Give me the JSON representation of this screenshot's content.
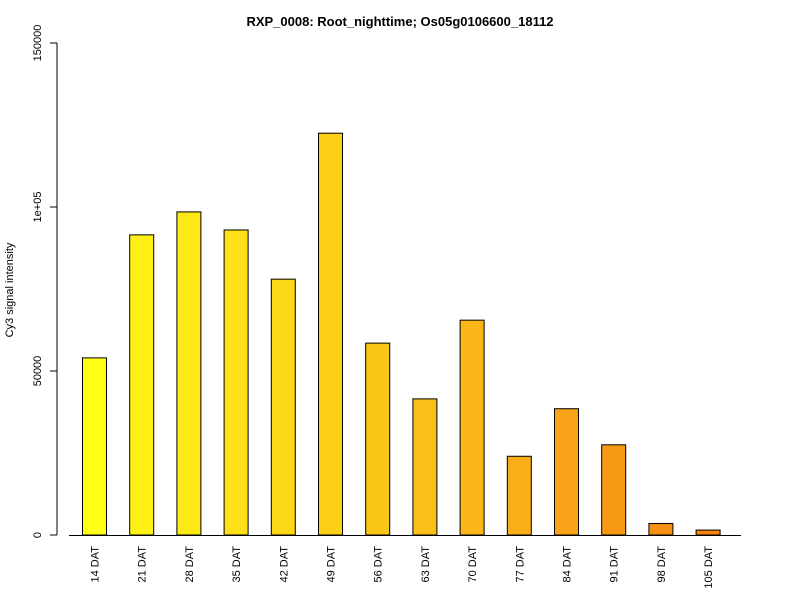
{
  "chart_data": {
    "type": "bar",
    "title": "RXP_0008: Root_nighttime; Os05g0106600_18112",
    "xlabel": "",
    "ylabel": "Cy3 signal intensity",
    "ylim": [
      0,
      150000
    ],
    "y_ticks": [
      {
        "value": 0,
        "label": "0"
      },
      {
        "value": 50000,
        "label": "50000"
      },
      {
        "value": 100000,
        "label": "1e+05"
      },
      {
        "value": 150000,
        "label": "150000"
      }
    ],
    "categories": [
      "14 DAT",
      "21 DAT",
      "28 DAT",
      "35 DAT",
      "42 DAT",
      "49 DAT",
      "56 DAT",
      "63 DAT",
      "70 DAT",
      "77 DAT",
      "84 DAT",
      "91 DAT",
      "98 DAT",
      "105 DAT"
    ],
    "values": [
      54000,
      91500,
      98500,
      93000,
      78000,
      122500,
      58500,
      41500,
      65500,
      24000,
      38500,
      27500,
      3500,
      1500
    ],
    "colors": [
      "#ffff14",
      "#fff016",
      "#fee816",
      "#fde018",
      "#fcd817",
      "#fcd017",
      "#fbc717",
      "#fabf18",
      "#fbb618",
      "#f9ad18",
      "#f9a318",
      "#f89916",
      "#f78f16",
      "#f78413"
    ],
    "grid": false,
    "legend": "none"
  }
}
